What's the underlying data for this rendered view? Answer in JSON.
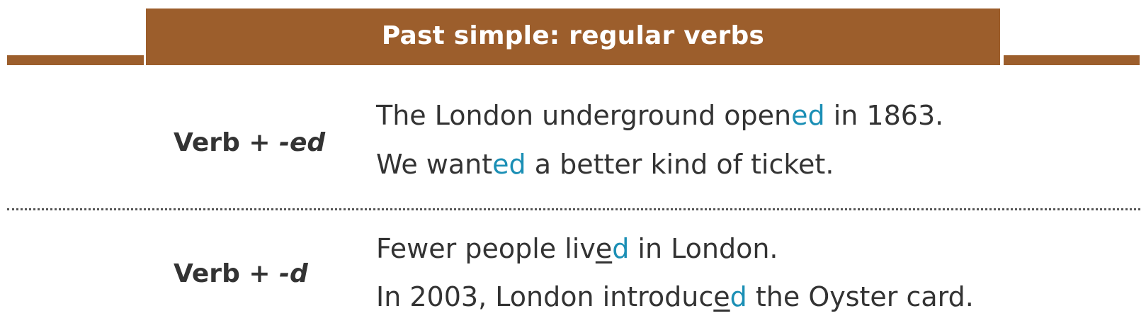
{
  "header": {
    "title": "Past simple: regular verbs",
    "accent_color": "#9c5e2c"
  },
  "highlight_color": "#1b8fb5",
  "rows": [
    {
      "label_prefix": "Verb + ",
      "label_suffix": "-ed",
      "examples": [
        {
          "before": "The London underground open",
          "highlight": "ed",
          "after": " in 1863."
        },
        {
          "before": "We want",
          "highlight": "ed",
          "after": " a better kind of ticket."
        }
      ]
    },
    {
      "label_prefix": "Verb + ",
      "label_suffix": "-d",
      "examples": [
        {
          "before": "Fewer people liv",
          "underlined": "e",
          "highlight": "d",
          "after": " in London."
        },
        {
          "before": "In 2003, London introduc",
          "underlined": "e",
          "highlight": "d",
          "after": " the Oyster card."
        }
      ]
    }
  ]
}
